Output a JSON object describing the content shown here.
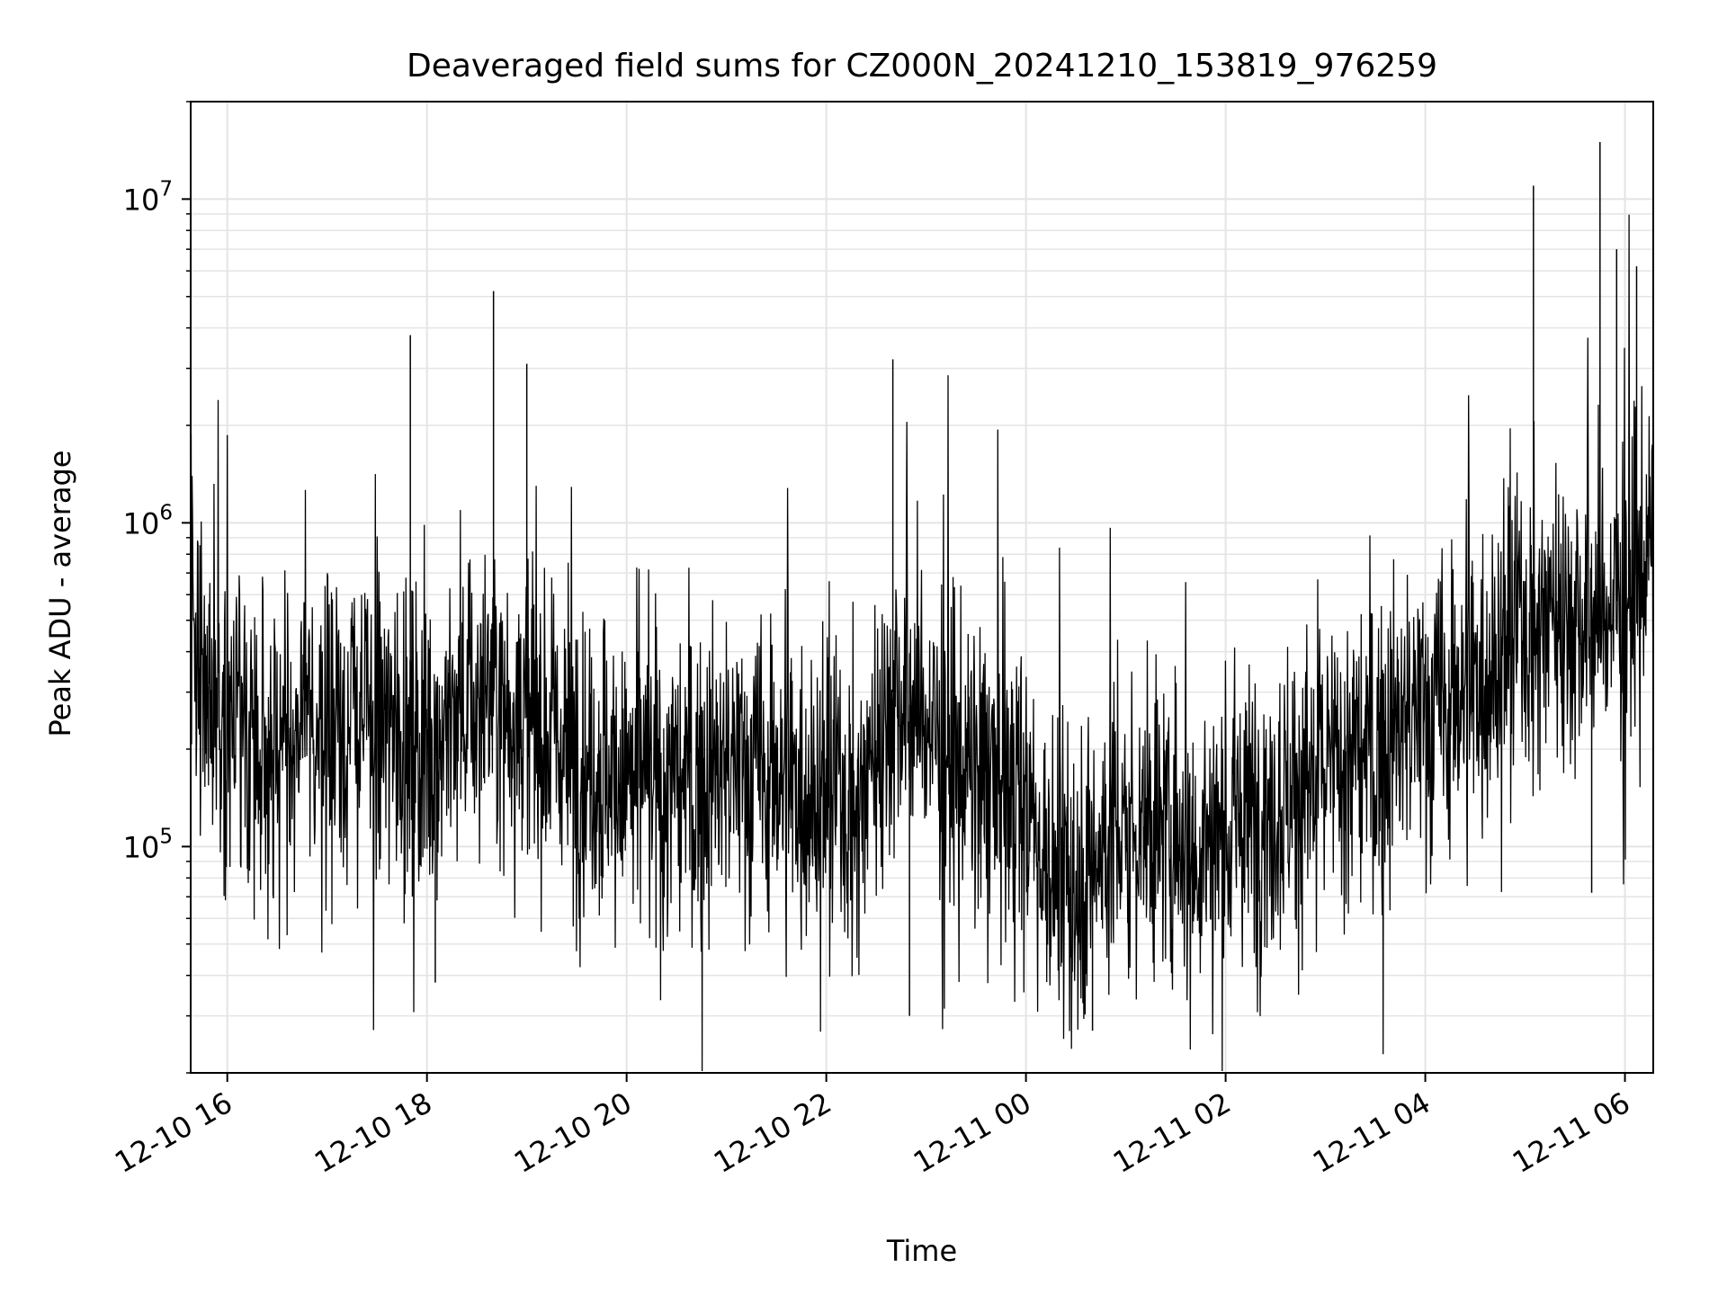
{
  "chart_data": {
    "type": "line",
    "title": "Deaveraged field sums for CZ000N_20241210_153819_976259",
    "xlabel": "Time",
    "ylabel": "Peak ADU - average",
    "yscale": "log",
    "ylim": [
      20000,
      20000000
    ],
    "xlim": [
      "2024-12-10 15:38",
      "2024-12-11 06:17"
    ],
    "grid": true,
    "x_ticks": [
      {
        "t": "2024-12-10 16:00",
        "label": "12-10 16"
      },
      {
        "t": "2024-12-10 18:00",
        "label": "12-10 18"
      },
      {
        "t": "2024-12-10 20:00",
        "label": "12-10 20"
      },
      {
        "t": "2024-12-10 22:00",
        "label": "12-10 22"
      },
      {
        "t": "2024-12-11 00:00",
        "label": "12-11 00"
      },
      {
        "t": "2024-12-11 02:00",
        "label": "12-11 02"
      },
      {
        "t": "2024-12-11 04:00",
        "label": "12-11 04"
      },
      {
        "t": "2024-12-11 06:00",
        "label": "12-11 06"
      }
    ],
    "y_ticks": [
      {
        "v": 100000,
        "base": "10",
        "exp": "5"
      },
      {
        "v": 1000000,
        "base": "10",
        "exp": "6"
      },
      {
        "v": 10000000,
        "base": "10",
        "exp": "7"
      }
    ],
    "series": [
      {
        "color": "#000000",
        "points": [
          [
            "2024-12-10 15:38",
            500000
          ],
          [
            "2024-12-10 15:50",
            300000
          ],
          [
            "2024-12-10 16:00",
            250000
          ],
          [
            "2024-12-10 16:20",
            220000
          ],
          [
            "2024-12-10 16:40",
            200000
          ],
          [
            "2024-12-10 17:00",
            230000
          ],
          [
            "2024-12-10 17:20",
            250000
          ],
          [
            "2024-12-10 17:40",
            230000
          ],
          [
            "2024-12-10 18:00",
            210000
          ],
          [
            "2024-12-10 18:20",
            260000
          ],
          [
            "2024-12-10 18:40",
            300000
          ],
          [
            "2024-12-10 19:00",
            250000
          ],
          [
            "2024-12-10 19:20",
            210000
          ],
          [
            "2024-12-10 19:40",
            180000
          ],
          [
            "2024-12-10 20:00",
            160000
          ],
          [
            "2024-12-10 20:20",
            150000
          ],
          [
            "2024-12-10 20:40",
            160000
          ],
          [
            "2024-12-10 21:00",
            170000
          ],
          [
            "2024-12-10 21:20",
            175000
          ],
          [
            "2024-12-10 21:40",
            165000
          ],
          [
            "2024-12-10 22:00",
            150000
          ],
          [
            "2024-12-10 22:20",
            140000
          ],
          [
            "2024-12-10 22:40",
            300000
          ],
          [
            "2024-12-10 23:00",
            250000
          ],
          [
            "2024-12-10 23:20",
            180000
          ],
          [
            "2024-12-10 23:40",
            150000
          ],
          [
            "2024-12-11 00:00",
            140000
          ],
          [
            "2024-12-11 00:20",
            70000
          ],
          [
            "2024-12-11 00:40",
            90000
          ],
          [
            "2024-12-11 01:00",
            110000
          ],
          [
            "2024-12-11 01:20",
            120000
          ],
          [
            "2024-12-11 01:40",
            100000
          ],
          [
            "2024-12-11 02:00",
            110000
          ],
          [
            "2024-12-11 02:20",
            130000
          ],
          [
            "2024-12-11 02:40",
            150000
          ],
          [
            "2024-12-11 03:00",
            170000
          ],
          [
            "2024-12-11 03:20",
            190000
          ],
          [
            "2024-12-11 03:40",
            220000
          ],
          [
            "2024-12-11 04:00",
            260000
          ],
          [
            "2024-12-11 04:20",
            300000
          ],
          [
            "2024-12-11 04:40",
            380000
          ],
          [
            "2024-12-11 05:00",
            500000
          ],
          [
            "2024-12-11 05:20",
            550000
          ],
          [
            "2024-12-11 05:40",
            500000
          ],
          [
            "2024-12-11 06:00",
            600000
          ],
          [
            "2024-12-11 06:17",
            850000
          ]
        ],
        "spikes": [
          [
            "2024-12-10 17:50",
            3800000
          ],
          [
            "2024-12-10 18:40",
            5200000
          ],
          [
            "2024-12-10 19:00",
            3100000
          ],
          [
            "2024-12-10 22:40",
            3200000
          ],
          [
            "2024-12-11 05:05",
            11000000
          ],
          [
            "2024-12-11 05:45",
            15000000
          ],
          [
            "2024-12-11 05:55",
            7000000
          ],
          [
            "2024-12-11 06:07",
            6200000
          ],
          [
            "2024-12-10 18:05",
            38000
          ],
          [
            "2024-12-11 00:40",
            27000
          ],
          [
            "2024-12-10 22:50",
            30000
          ],
          [
            "2024-12-11 05:40",
            72000
          ]
        ]
      }
    ]
  }
}
